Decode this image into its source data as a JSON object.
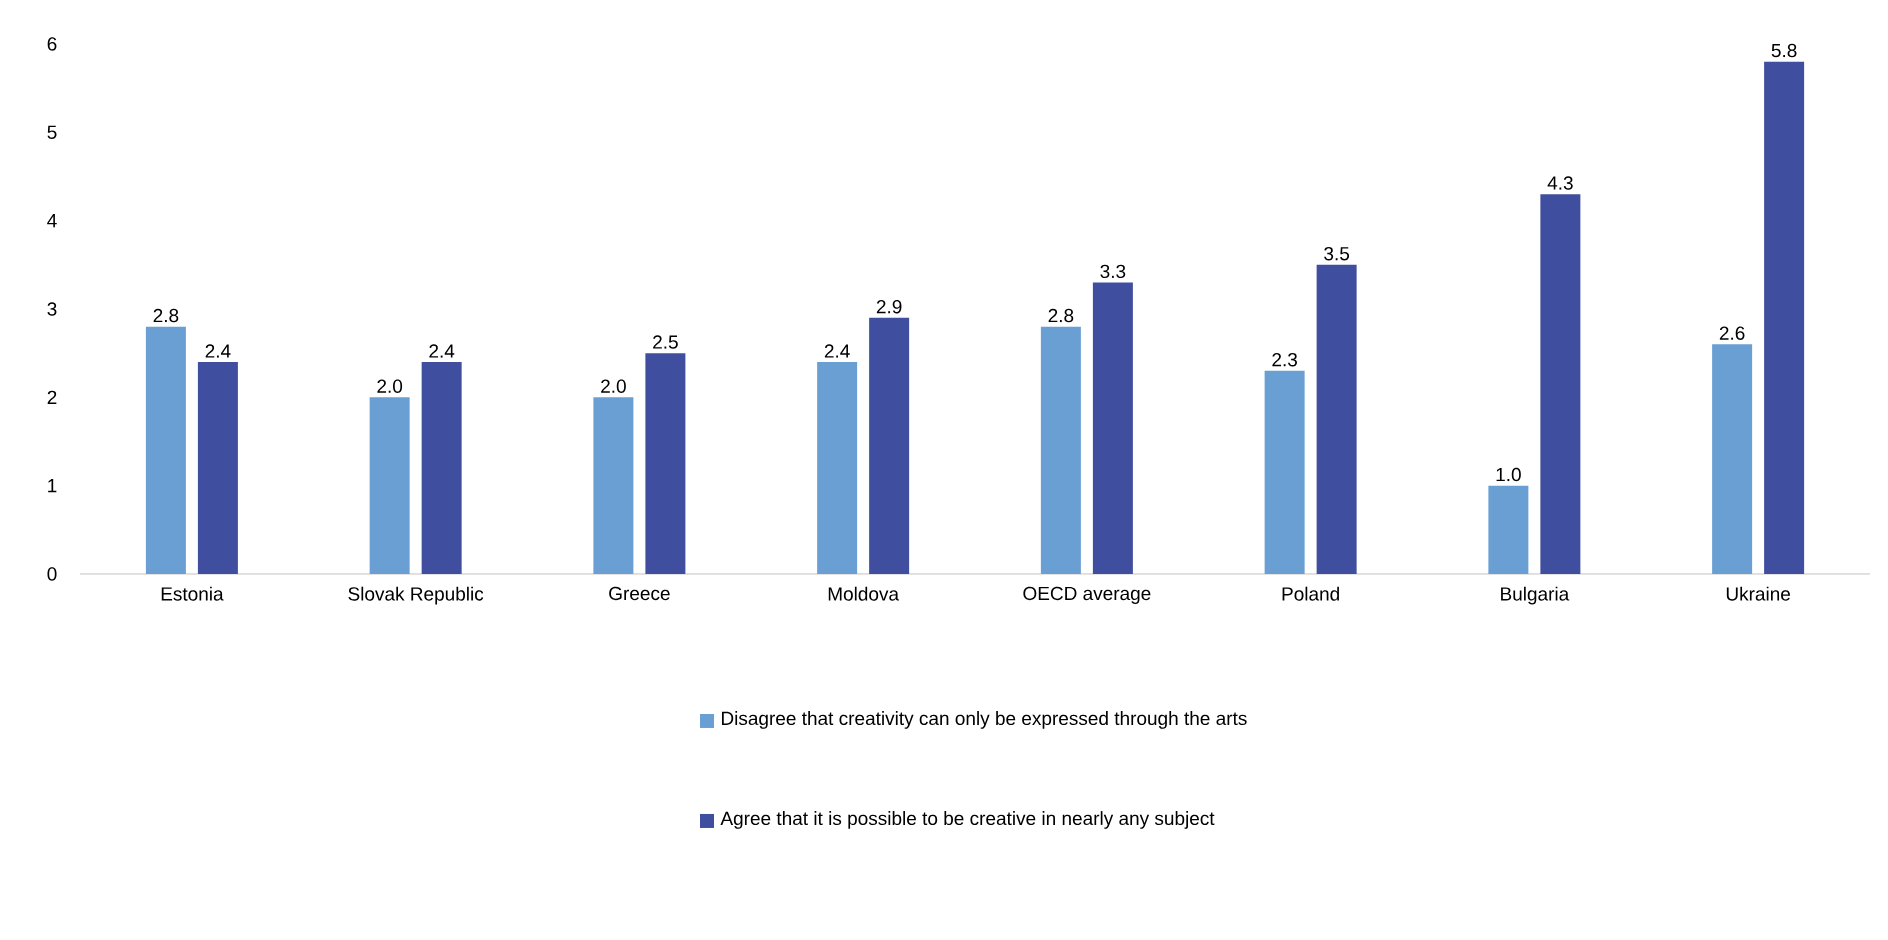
{
  "chart_data": {
    "type": "bar",
    "categories": [
      "Estonia",
      "Slovak Republic",
      "Greece",
      "Moldova",
      "OECD average",
      "Poland",
      "Bulgaria",
      "Ukraine"
    ],
    "series": [
      {
        "name": "Disagree that creativity can only be expressed through the arts",
        "color": "#6a9fd3",
        "values": [
          2.8,
          2.0,
          2.0,
          2.4,
          2.8,
          2.3,
          1.0,
          2.6
        ],
        "value_labels": [
          "2.8",
          "2.0",
          "2.0",
          "2.4",
          "2.8",
          "2.3",
          "1.0",
          "2.6"
        ]
      },
      {
        "name": "Agree that it is possible to be creative in nearly any subject",
        "color": "#3f4e9f",
        "values": [
          2.4,
          2.4,
          2.5,
          2.9,
          3.3,
          3.5,
          4.3,
          5.8
        ],
        "value_labels": [
          "2.4",
          "2.4",
          "2.5",
          "2.9",
          "3.3",
          "3.5",
          "4.3",
          "5.8"
        ]
      }
    ],
    "ylim": [
      0,
      6
    ],
    "yticks": [
      0,
      1,
      2,
      3,
      4,
      5,
      6
    ],
    "grid": false,
    "legend": "bottom"
  }
}
